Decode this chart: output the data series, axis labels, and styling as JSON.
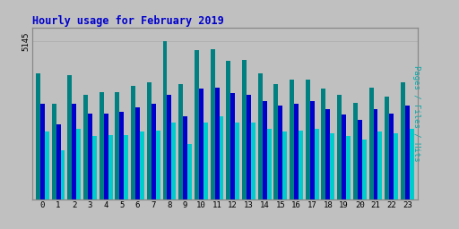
{
  "title": "Hourly usage for February 2019",
  "hours": [
    0,
    1,
    2,
    3,
    4,
    5,
    6,
    7,
    8,
    9,
    10,
    11,
    12,
    13,
    14,
    15,
    16,
    17,
    18,
    19,
    20,
    21,
    22,
    23
  ],
  "hits": [
    4100,
    3100,
    4050,
    3400,
    3500,
    3500,
    3700,
    3800,
    5145,
    3750,
    4850,
    4900,
    4500,
    4550,
    4100,
    3750,
    3900,
    3900,
    3600,
    3400,
    3150,
    3650,
    3350,
    3800
  ],
  "files": [
    3100,
    2450,
    3100,
    2800,
    2800,
    2850,
    3000,
    3100,
    3400,
    2700,
    3600,
    3650,
    3450,
    3400,
    3200,
    3050,
    3100,
    3200,
    2950,
    2750,
    2600,
    2950,
    2800,
    3050
  ],
  "pages": [
    2200,
    1600,
    2300,
    2050,
    2100,
    2100,
    2200,
    2250,
    2500,
    1800,
    2500,
    2700,
    2500,
    2500,
    2300,
    2200,
    2250,
    2300,
    2150,
    2050,
    1950,
    2200,
    2150,
    2300
  ],
  "color_hits": "#008080",
  "color_files": "#0000cc",
  "color_pages": "#00cccc",
  "ylabel_right": "Pages / Files / Hits",
  "ytick_label": "5145",
  "background_color": "#c0c0c0",
  "plot_background": "#c0c0c0",
  "title_color": "#0000cc",
  "ylabel_color": "#00aaaa",
  "bar_width": 0.28,
  "ylim": [
    0,
    5600
  ],
  "figsize": [
    5.12,
    2.56
  ],
  "dpi": 100
}
